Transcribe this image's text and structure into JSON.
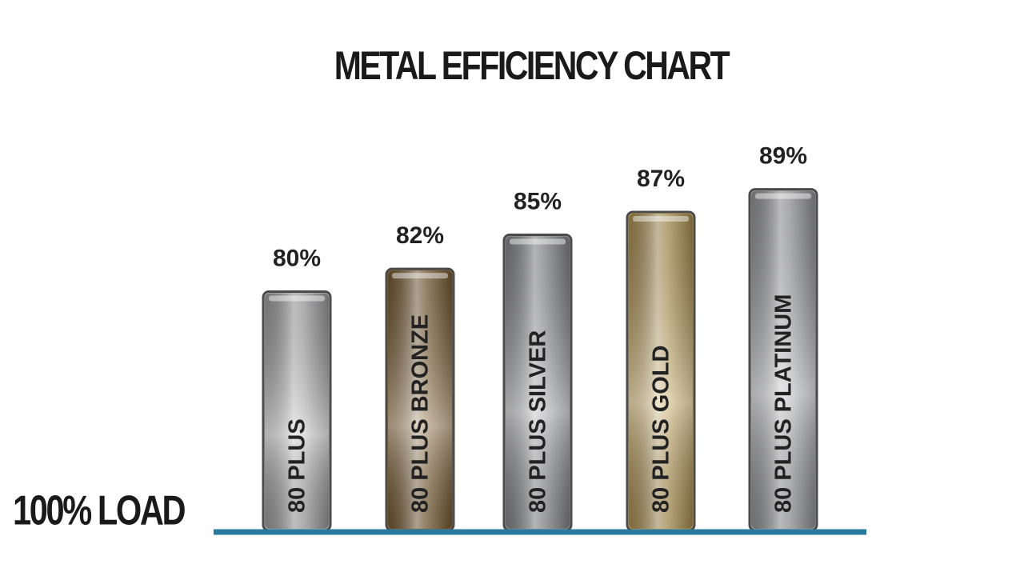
{
  "chart_data": {
    "type": "bar",
    "title": "METAL EFFICIENCY CHART",
    "annotation": "100% LOAD",
    "categories": [
      "80 PLUS",
      "80 PLUS BRONZE",
      "80 PLUS SILVER",
      "80 PLUS GOLD",
      "80 PLUS PLATINUM"
    ],
    "values": [
      80,
      82,
      85,
      87,
      89
    ],
    "value_labels": [
      "80%",
      "82%",
      "85%",
      "87%",
      "89%"
    ],
    "colors": [
      "#b9b9bb",
      "#8a6a3c",
      "#9d9ea1",
      "#c9a960",
      "#aeafb2"
    ],
    "baseline_color": "#2a7aa0",
    "ylim": [
      59,
      92
    ]
  }
}
